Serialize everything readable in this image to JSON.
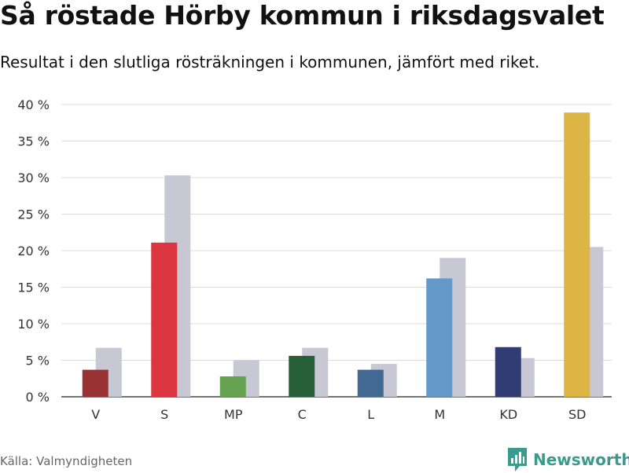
{
  "header": {
    "title": "Så röstade Hörby kommun i riksdagsvalet",
    "subtitle": "Resultat i den slutliga rösträkningen i kommunen, jämfört med riket."
  },
  "footer": {
    "source": "Källa: Valmyndigheten",
    "brand": "Newsworthy",
    "brand_icon": "bar-chart-logo-icon"
  },
  "colors": {
    "national": "#c8c7d4",
    "brand": "#3a9a8e",
    "grid": "#dcdcdc"
  },
  "chart_data": {
    "type": "bar",
    "title": "Så röstade Hörby kommun i riksdagsvalet",
    "subtitle": "Resultat i den slutliga rösträkningen i kommunen, jämfört med riket.",
    "xlabel": "",
    "ylabel": "",
    "ylim": [
      0,
      40
    ],
    "yticks": [
      0,
      5,
      10,
      15,
      20,
      25,
      30,
      35,
      40
    ],
    "ytick_labels": [
      "0 %",
      "5 %",
      "10 %",
      "15 %",
      "20 %",
      "25 %",
      "30 %",
      "35 %",
      "40 %"
    ],
    "grid": true,
    "legend": "none",
    "categories": [
      "V",
      "S",
      "MP",
      "C",
      "L",
      "M",
      "KD",
      "SD"
    ],
    "series": [
      {
        "name": "Hörby kommun",
        "values": [
          3.7,
          21.1,
          2.8,
          5.6,
          3.7,
          16.2,
          6.8,
          38.9
        ],
        "colors": [
          "#993333",
          "#dc3640",
          "#66a350",
          "#265f38",
          "#416993",
          "#6398c8",
          "#313c73",
          "#ddb545"
        ]
      },
      {
        "name": "Riket",
        "values": [
          6.7,
          30.3,
          5.0,
          6.7,
          4.5,
          19.0,
          5.3,
          20.5
        ],
        "color": "#c8c7d4"
      }
    ]
  }
}
